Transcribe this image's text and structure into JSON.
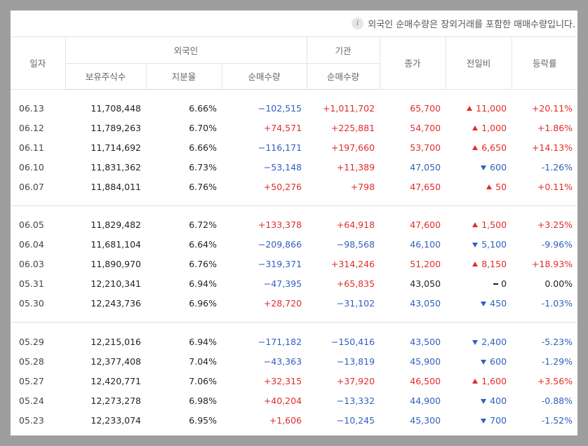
{
  "notice": "외국인 순매수량은 장외거래를 포함한 매매수량입니다.",
  "headers": {
    "date": "일자",
    "foreign": "외국인",
    "institution": "기관",
    "close": "종가",
    "change": "전일비",
    "rate": "등락률",
    "holdings": "보유주식수",
    "ratio": "지분율",
    "foreign_net": "순매수량",
    "inst_net": "순매수량"
  },
  "groups": [
    [
      {
        "date": "06.13",
        "holdings": "11,708,448",
        "ratio": "6.66%",
        "foreign_net": "−102,515",
        "foreign_dir": "down",
        "inst_net": "+1,011,702",
        "inst_dir": "up",
        "close": "65,700",
        "change": "11,000",
        "dir": "up",
        "rate": "+20.11%"
      },
      {
        "date": "06.12",
        "holdings": "11,789,263",
        "ratio": "6.70%",
        "foreign_net": "+74,571",
        "foreign_dir": "up",
        "inst_net": "+225,881",
        "inst_dir": "up",
        "close": "54,700",
        "change": "1,000",
        "dir": "up",
        "rate": "+1.86%"
      },
      {
        "date": "06.11",
        "holdings": "11,714,692",
        "ratio": "6.66%",
        "foreign_net": "−116,171",
        "foreign_dir": "down",
        "inst_net": "+197,660",
        "inst_dir": "up",
        "close": "53,700",
        "change": "6,650",
        "dir": "up",
        "rate": "+14.13%"
      },
      {
        "date": "06.10",
        "holdings": "11,831,362",
        "ratio": "6.73%",
        "foreign_net": "−53,148",
        "foreign_dir": "down",
        "inst_net": "+11,389",
        "inst_dir": "up",
        "close": "47,050",
        "change": "600",
        "dir": "down",
        "rate": "-1.26%"
      },
      {
        "date": "06.07",
        "holdings": "11,884,011",
        "ratio": "6.76%",
        "foreign_net": "+50,276",
        "foreign_dir": "up",
        "inst_net": "+798",
        "inst_dir": "up",
        "close": "47,650",
        "change": "50",
        "dir": "up",
        "rate": "+0.11%"
      }
    ],
    [
      {
        "date": "06.05",
        "holdings": "11,829,482",
        "ratio": "6.72%",
        "foreign_net": "+133,378",
        "foreign_dir": "up",
        "inst_net": "+64,918",
        "inst_dir": "up",
        "close": "47,600",
        "change": "1,500",
        "dir": "up",
        "rate": "+3.25%"
      },
      {
        "date": "06.04",
        "holdings": "11,681,104",
        "ratio": "6.64%",
        "foreign_net": "−209,866",
        "foreign_dir": "down",
        "inst_net": "−98,568",
        "inst_dir": "down",
        "close": "46,100",
        "change": "5,100",
        "dir": "down",
        "rate": "-9.96%"
      },
      {
        "date": "06.03",
        "holdings": "11,890,970",
        "ratio": "6.76%",
        "foreign_net": "−319,371",
        "foreign_dir": "down",
        "inst_net": "+314,246",
        "inst_dir": "up",
        "close": "51,200",
        "change": "8,150",
        "dir": "up",
        "rate": "+18.93%"
      },
      {
        "date": "05.31",
        "holdings": "12,210,341",
        "ratio": "6.94%",
        "foreign_net": "−47,395",
        "foreign_dir": "down",
        "inst_net": "+65,835",
        "inst_dir": "up",
        "close": "43,050",
        "change": "0",
        "dir": "flat",
        "rate": "0.00%"
      },
      {
        "date": "05.30",
        "holdings": "12,243,736",
        "ratio": "6.96%",
        "foreign_net": "+28,720",
        "foreign_dir": "up",
        "inst_net": "−31,102",
        "inst_dir": "down",
        "close": "43,050",
        "change": "450",
        "dir": "down",
        "rate": "-1.03%"
      }
    ],
    [
      {
        "date": "05.29",
        "holdings": "12,215,016",
        "ratio": "6.94%",
        "foreign_net": "−171,182",
        "foreign_dir": "down",
        "inst_net": "−150,416",
        "inst_dir": "down",
        "close": "43,500",
        "change": "2,400",
        "dir": "down",
        "rate": "-5.23%"
      },
      {
        "date": "05.28",
        "holdings": "12,377,408",
        "ratio": "7.04%",
        "foreign_net": "−43,363",
        "foreign_dir": "down",
        "inst_net": "−13,819",
        "inst_dir": "down",
        "close": "45,900",
        "change": "600",
        "dir": "down",
        "rate": "-1.29%"
      },
      {
        "date": "05.27",
        "holdings": "12,420,771",
        "ratio": "7.06%",
        "foreign_net": "+32,315",
        "foreign_dir": "up",
        "inst_net": "+37,920",
        "inst_dir": "up",
        "close": "46,500",
        "change": "1,600",
        "dir": "up",
        "rate": "+3.56%"
      },
      {
        "date": "05.24",
        "holdings": "12,273,278",
        "ratio": "6.98%",
        "foreign_net": "+40,204",
        "foreign_dir": "up",
        "inst_net": "−13,332",
        "inst_dir": "down",
        "close": "44,900",
        "change": "400",
        "dir": "down",
        "rate": "-0.88%"
      },
      {
        "date": "05.23",
        "holdings": "12,233,074",
        "ratio": "6.95%",
        "foreign_net": "+1,606",
        "foreign_dir": "up",
        "inst_net": "−10,245",
        "inst_dir": "down",
        "close": "45,300",
        "change": "700",
        "dir": "down",
        "rate": "-1.52%"
      }
    ]
  ]
}
